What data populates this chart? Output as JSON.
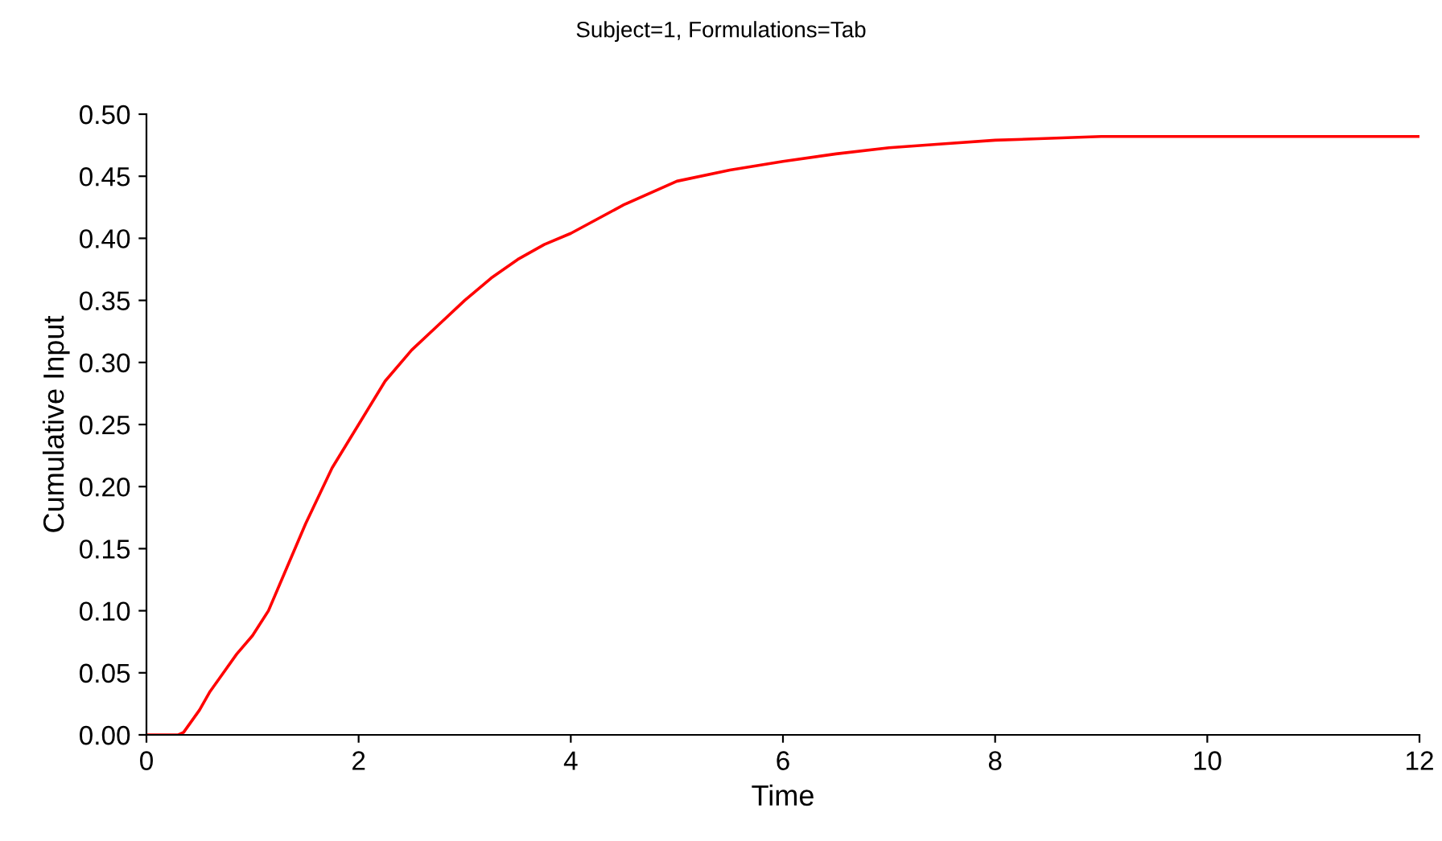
{
  "chart_data": {
    "type": "line",
    "title": "Subject=1, Formulations=Tab",
    "xlabel": "Time",
    "ylabel": "Cumulative Input",
    "x": [
      0,
      0.3,
      0.35,
      0.4,
      0.5,
      0.6,
      0.7,
      0.85,
      1.0,
      1.15,
      1.3,
      1.5,
      1.75,
      2.0,
      2.25,
      2.5,
      2.75,
      3.0,
      3.25,
      3.5,
      3.75,
      4.0,
      4.5,
      5.0,
      5.5,
      6.0,
      6.5,
      7.0,
      7.5,
      8.0,
      9.0,
      10.0,
      11.0,
      12.0
    ],
    "series": [
      {
        "color": "#ff0000",
        "values": [
          0,
          0,
          0.002,
          0.008,
          0.02,
          0.035,
          0.047,
          0.065,
          0.08,
          0.1,
          0.13,
          0.17,
          0.215,
          0.25,
          0.285,
          0.31,
          0.33,
          0.35,
          0.368,
          0.383,
          0.395,
          0.404,
          0.427,
          0.446,
          0.455,
          0.462,
          0.468,
          0.473,
          0.476,
          0.479,
          0.482,
          0.482,
          0.482,
          0.482
        ]
      }
    ],
    "xlim": [
      0,
      12
    ],
    "xticks": [
      0,
      2,
      4,
      6,
      8,
      10,
      12
    ],
    "ylim": [
      0,
      0.5
    ],
    "yticks": [
      {
        "value": 0,
        "label": "0.00"
      },
      {
        "value": 0.05,
        "label": "0.05"
      },
      {
        "value": 0.1,
        "label": "0.10"
      },
      {
        "value": 0.15,
        "label": "0.15"
      },
      {
        "value": 0.2,
        "label": "0.20"
      },
      {
        "value": 0.25,
        "label": "0.25"
      },
      {
        "value": 0.3,
        "label": "0.30"
      },
      {
        "value": 0.35,
        "label": "0.35"
      },
      {
        "value": 0.4,
        "label": "0.40"
      },
      {
        "value": 0.45,
        "label": "0.45"
      },
      {
        "value": 0.5,
        "label": "0.50"
      }
    ],
    "grid": false,
    "legend": false,
    "marker": "none",
    "line_style": "solid"
  }
}
